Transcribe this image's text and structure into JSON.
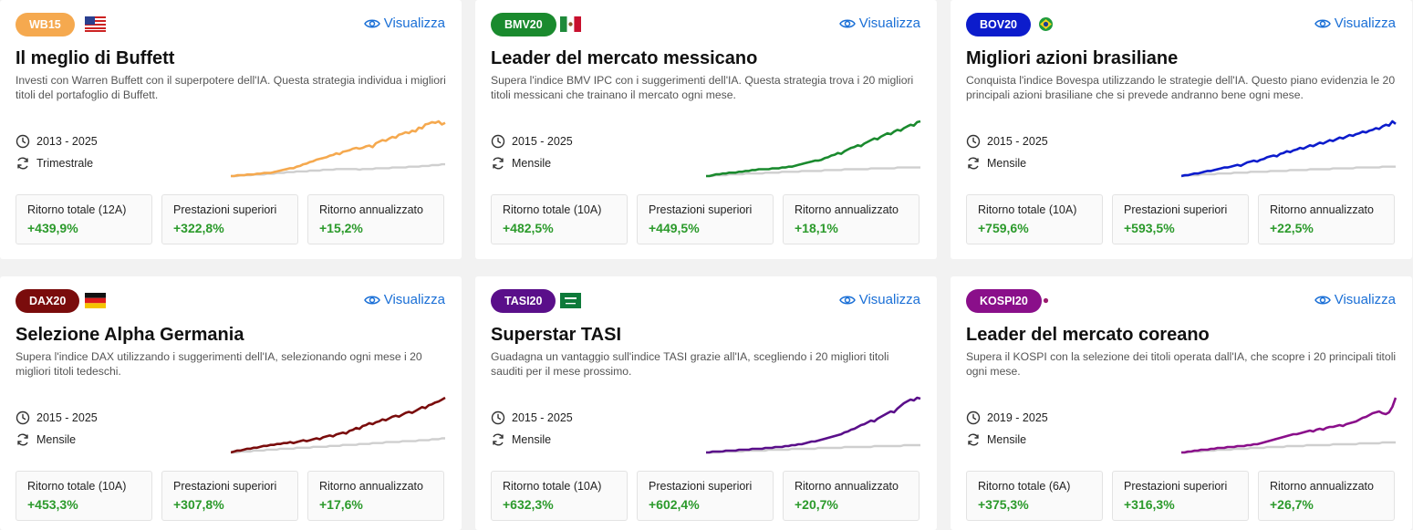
{
  "viz_label": "Visualizza",
  "cards": [
    {
      "badge": "WB15",
      "color": "#f5a94f",
      "flag": "us",
      "title": "Il meglio di Buffett",
      "description": "Investi con Warren Buffett con il superpotere dell'IA. Questa strategia individua i migliori titoli del portafoglio di Buffett.",
      "period": "2013 - 2025",
      "frequency": "Trimestrale",
      "stats": [
        {
          "label": "Ritorno totale (12A)",
          "value": "+439,9%"
        },
        {
          "label": "Prestazioni superiori",
          "value": "+322,8%"
        },
        {
          "label": "Ritorno annualizzato",
          "value": "+15,2%"
        }
      ],
      "strategy": [
        2,
        2,
        3,
        3,
        3,
        4,
        4,
        4,
        5,
        5,
        6,
        6,
        6,
        7,
        8,
        9,
        10,
        11,
        12,
        12,
        14,
        15,
        17,
        18,
        20,
        21,
        23,
        24,
        25,
        26,
        28,
        29,
        31,
        30,
        33,
        34,
        35,
        37,
        38,
        37,
        38,
        40,
        41,
        39,
        44,
        46,
        48,
        47,
        50,
        52,
        51,
        55,
        56,
        58,
        57,
        60,
        59,
        64,
        63,
        68,
        69,
        71,
        70,
        72,
        68,
        70
      ],
      "benchmark": [
        2,
        2,
        2,
        3,
        3,
        3,
        3,
        4,
        4,
        4,
        4,
        5,
        5,
        5,
        6,
        6,
        6,
        7,
        7,
        7,
        8,
        8,
        8,
        8,
        9,
        9,
        9,
        9,
        10,
        10,
        10,
        10,
        11,
        11,
        11,
        11,
        11,
        11,
        11,
        10,
        11,
        11,
        11,
        11,
        12,
        12,
        12,
        12,
        12,
        13,
        13,
        13,
        13,
        13,
        14,
        14,
        14,
        14,
        15,
        15,
        15,
        16,
        16,
        16,
        17,
        17
      ]
    },
    {
      "badge": "BMV20",
      "color": "#1a8a2e",
      "flag": "mx",
      "title": "Leader del mercato messicano",
      "description": "Supera l'indice BMV IPC con i suggerimenti dell'IA. Questa strategia trova i 20 migliori titoli messicani che trainano il mercato ogni mese.",
      "period": "2015 - 2025",
      "frequency": "Mensile",
      "stats": [
        {
          "label": "Ritorno totale (10A)",
          "value": "+482,5%"
        },
        {
          "label": "Prestazioni superiori",
          "value": "+449,5%"
        },
        {
          "label": "Ritorno annualizzato",
          "value": "+18,1%"
        }
      ],
      "strategy": [
        2,
        2,
        3,
        4,
        4,
        5,
        5,
        6,
        6,
        6,
        7,
        7,
        8,
        8,
        9,
        9,
        10,
        10,
        10,
        10,
        11,
        11,
        11,
        12,
        12,
        13,
        13,
        14,
        15,
        16,
        17,
        18,
        19,
        20,
        20,
        21,
        23,
        24,
        26,
        27,
        29,
        28,
        31,
        33,
        35,
        36,
        38,
        37,
        40,
        42,
        44,
        46,
        45,
        48,
        50,
        52,
        51,
        54,
        56,
        55,
        58,
        60,
        62,
        61,
        65,
        66
      ],
      "benchmark": [
        2,
        2,
        2,
        3,
        3,
        3,
        3,
        4,
        4,
        4,
        4,
        4,
        5,
        5,
        5,
        5,
        5,
        5,
        6,
        6,
        6,
        6,
        6,
        7,
        7,
        7,
        7,
        7,
        7,
        8,
        8,
        8,
        8,
        8,
        8,
        8,
        9,
        9,
        9,
        9,
        9,
        9,
        10,
        10,
        10,
        10,
        10,
        10,
        10,
        10,
        11,
        11,
        11,
        11,
        11,
        11,
        11,
        11,
        12,
        12,
        12,
        12,
        12,
        12,
        12,
        12
      ]
    },
    {
      "badge": "BOV20",
      "color": "#0c1ccc",
      "flag": "br",
      "title": "Migliori azioni brasiliane",
      "description": "Conquista l'indice Bovespa utilizzando le strategie dell'IA. Questo piano evidenzia le 20 principali azioni brasiliane che si prevede andranno bene ogni mese.",
      "period": "2015 - 2025",
      "frequency": "Mensile",
      "stats": [
        {
          "label": "Ritorno totale (10A)",
          "value": "+759,6%"
        },
        {
          "label": "Prestazioni superiori",
          "value": "+593,5%"
        },
        {
          "label": "Ritorno annualizzato",
          "value": "+22,5%"
        }
      ],
      "strategy": [
        2,
        3,
        3,
        4,
        5,
        5,
        6,
        7,
        8,
        8,
        9,
        10,
        11,
        12,
        12,
        13,
        14,
        15,
        14,
        16,
        18,
        19,
        20,
        19,
        21,
        22,
        24,
        25,
        26,
        25,
        28,
        29,
        31,
        30,
        32,
        33,
        35,
        34,
        36,
        38,
        37,
        39,
        41,
        40,
        42,
        44,
        43,
        45,
        47,
        46,
        48,
        50,
        49,
        51,
        52,
        54,
        53,
        55,
        56,
        58,
        57,
        60,
        62,
        61,
        66,
        63
      ],
      "benchmark": [
        2,
        2,
        3,
        3,
        3,
        3,
        4,
        4,
        4,
        4,
        4,
        5,
        5,
        5,
        5,
        5,
        6,
        6,
        6,
        6,
        6,
        7,
        7,
        7,
        7,
        7,
        7,
        8,
        8,
        8,
        8,
        8,
        8,
        9,
        9,
        9,
        9,
        9,
        9,
        10,
        10,
        10,
        10,
        10,
        10,
        10,
        11,
        11,
        11,
        11,
        11,
        11,
        11,
        12,
        12,
        12,
        12,
        12,
        12,
        12,
        12,
        13,
        13,
        13,
        13,
        13
      ]
    },
    {
      "badge": "DAX20",
      "color": "#7a0c0c",
      "flag": "de",
      "title": "Selezione Alpha Germania",
      "description": "Supera l'indice DAX utilizzando i suggerimenti dell'IA, selezionando ogni mese i 20 migliori titoli tedeschi.",
      "period": "2015 - 2025",
      "frequency": "Mensile",
      "stats": [
        {
          "label": "Ritorno totale (10A)",
          "value": "+453,3%"
        },
        {
          "label": "Prestazioni superiori",
          "value": "+307,8%"
        },
        {
          "label": "Ritorno annualizzato",
          "value": "+17,6%"
        }
      ],
      "strategy": [
        2,
        3,
        4,
        4,
        5,
        6,
        6,
        7,
        7,
        8,
        9,
        9,
        10,
        10,
        11,
        11,
        12,
        12,
        13,
        12,
        13,
        14,
        15,
        14,
        15,
        16,
        17,
        16,
        18,
        19,
        20,
        19,
        21,
        22,
        23,
        22,
        25,
        26,
        28,
        27,
        30,
        31,
        33,
        32,
        34,
        35,
        37,
        36,
        38,
        40,
        41,
        40,
        42,
        44,
        45,
        44,
        46,
        48,
        50,
        49,
        52,
        53,
        55,
        56,
        58,
        60
      ],
      "benchmark": [
        2,
        2,
        2,
        3,
        3,
        3,
        3,
        4,
        4,
        4,
        4,
        5,
        5,
        5,
        5,
        6,
        6,
        6,
        6,
        6,
        7,
        7,
        7,
        7,
        7,
        8,
        8,
        8,
        8,
        8,
        9,
        9,
        9,
        9,
        10,
        10,
        10,
        10,
        10,
        11,
        11,
        11,
        11,
        12,
        12,
        12,
        12,
        13,
        13,
        13,
        13,
        13,
        14,
        14,
        14,
        14,
        14,
        15,
        15,
        15,
        15,
        16,
        16,
        16,
        17,
        17
      ]
    },
    {
      "badge": "TASI20",
      "color": "#5a0f8a",
      "flag": "sa",
      "title": "Superstar TASI",
      "description": "Guadagna un vantaggio sull'indice TASI grazie all'IA, scegliendo i 20 migliori titoli sauditi per il mese prossimo.",
      "period": "2015 - 2025",
      "frequency": "Mensile",
      "stats": [
        {
          "label": "Ritorno totale (10A)",
          "value": "+632,3%"
        },
        {
          "label": "Prestazioni superiori",
          "value": "+602,4%"
        },
        {
          "label": "Ritorno annualizzato",
          "value": "+20,7%"
        }
      ],
      "strategy": [
        2,
        2,
        3,
        3,
        3,
        3,
        4,
        4,
        4,
        4,
        5,
        5,
        5,
        5,
        6,
        6,
        6,
        6,
        7,
        7,
        7,
        8,
        8,
        8,
        9,
        9,
        10,
        10,
        11,
        11,
        12,
        13,
        14,
        14,
        15,
        16,
        17,
        18,
        19,
        20,
        21,
        22,
        24,
        25,
        27,
        28,
        30,
        32,
        33,
        35,
        37,
        36,
        39,
        41,
        43,
        45,
        47,
        46,
        50,
        53,
        56,
        58,
        60,
        59,
        62,
        61
      ],
      "benchmark": [
        2,
        2,
        2,
        2,
        2,
        3,
        3,
        3,
        3,
        3,
        3,
        3,
        4,
        4,
        4,
        4,
        4,
        4,
        4,
        5,
        5,
        5,
        5,
        5,
        5,
        5,
        6,
        6,
        6,
        6,
        6,
        6,
        6,
        6,
        7,
        7,
        7,
        7,
        7,
        7,
        7,
        7,
        8,
        8,
        8,
        8,
        8,
        8,
        8,
        8,
        8,
        9,
        9,
        9,
        9,
        9,
        9,
        9,
        9,
        9,
        10,
        10,
        10,
        10,
        10,
        10
      ]
    },
    {
      "badge": "KOSPI20",
      "color": "#8a0f8a",
      "flag": "kr",
      "title": "Leader del mercato coreano",
      "description": "Supera il KOSPI con la selezione dei titoli operata dall'IA, che scopre i 20 principali titoli ogni mese.",
      "period": "2019 - 2025",
      "frequency": "Mensile",
      "stats": [
        {
          "label": "Ritorno totale (6A)",
          "value": "+375,3%"
        },
        {
          "label": "Prestazioni superiori",
          "value": "+316,3%"
        },
        {
          "label": "Ritorno annualizzato",
          "value": "+26,7%"
        }
      ],
      "strategy": [
        2,
        2,
        3,
        3,
        4,
        4,
        5,
        5,
        5,
        6,
        6,
        7,
        7,
        7,
        8,
        8,
        8,
        9,
        9,
        9,
        10,
        10,
        11,
        11,
        12,
        13,
        14,
        15,
        16,
        17,
        18,
        19,
        20,
        21,
        22,
        22,
        23,
        24,
        25,
        26,
        25,
        27,
        28,
        27,
        29,
        30,
        30,
        31,
        32,
        31,
        33,
        34,
        35,
        36,
        38,
        40,
        41,
        43,
        45,
        46,
        47,
        45,
        44,
        46,
        52,
        62
      ],
      "benchmark": [
        2,
        2,
        2,
        3,
        3,
        3,
        3,
        4,
        4,
        4,
        4,
        5,
        5,
        5,
        5,
        5,
        6,
        6,
        6,
        6,
        6,
        7,
        7,
        7,
        7,
        7,
        8,
        8,
        8,
        8,
        8,
        8,
        9,
        9,
        9,
        9,
        9,
        9,
        10,
        10,
        10,
        10,
        10,
        10,
        10,
        10,
        11,
        11,
        11,
        11,
        11,
        11,
        11,
        11,
        12,
        12,
        12,
        12,
        12,
        12,
        12,
        13,
        13,
        13,
        13,
        13
      ]
    }
  ]
}
